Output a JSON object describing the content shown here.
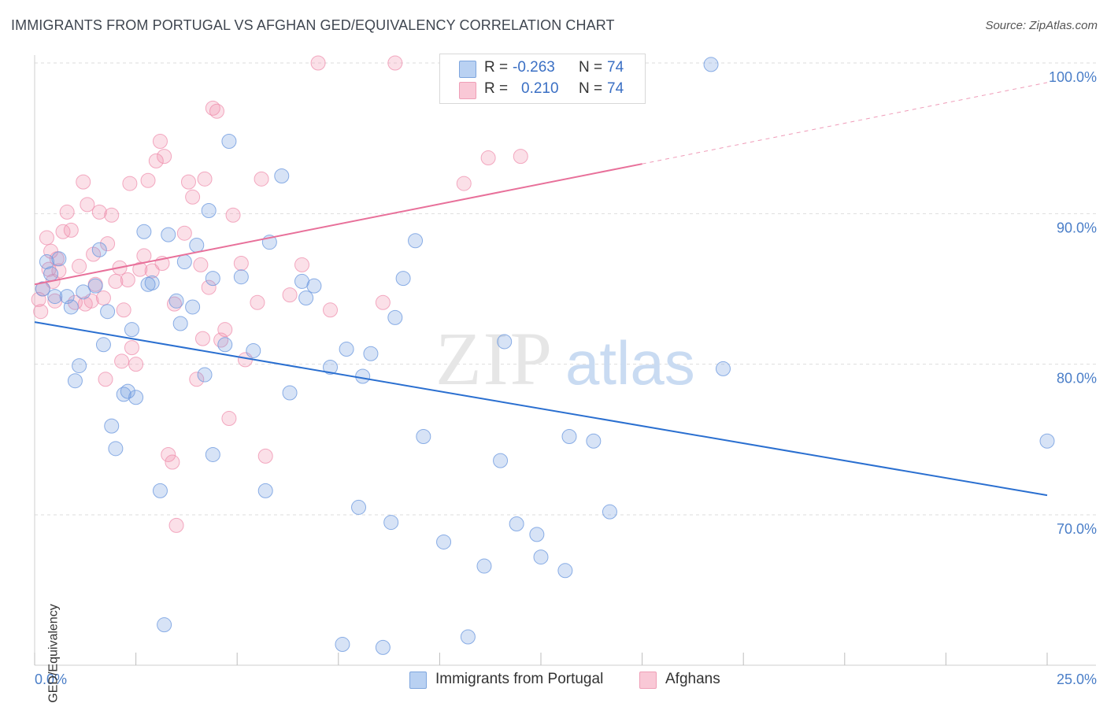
{
  "title": "IMMIGRANTS FROM PORTUGAL VS AFGHAN GED/EQUIVALENCY CORRELATION CHART",
  "source": "Source: ZipAtlas.com",
  "watermark": {
    "zip": "ZIP",
    "atlas": "atlas"
  },
  "legend": {
    "rows": [
      {
        "r_label": "R =",
        "r_value": "-0.263",
        "n_label": "N =",
        "n_value": "74"
      },
      {
        "r_label": "R =",
        "r_value": "0.210",
        "n_label": "N =",
        "n_value": "74"
      }
    ]
  },
  "bottom_legend": {
    "series1": "Immigrants from Portugal",
    "series2": "Afghans"
  },
  "chart_data": {
    "type": "scatter",
    "ylabel": "GED/Equivalency",
    "xlabel": "",
    "x_tick_labels": {
      "min": "0.0%",
      "max": "25.0%"
    },
    "y_tick_labels": [
      "100.0%",
      "90.0%",
      "80.0%",
      "70.0%"
    ],
    "y_ticks": [
      100,
      90,
      80,
      70
    ],
    "xlim": [
      0,
      25
    ],
    "ylim": [
      59.5,
      101.5
    ],
    "grid": true,
    "colors": {
      "blue": "#6f9be0",
      "pink": "#ef8fad",
      "blue_line": "#2a6fd0",
      "pink_line": "#e8709a"
    },
    "series": [
      {
        "name": "Immigrants from Portugal",
        "color": "#6f9be0",
        "trend": {
          "x0": 0,
          "y0": 82.8,
          "x1": 25,
          "y1": 71.3
        },
        "points": [
          [
            0.2,
            85
          ],
          [
            0.3,
            86.8
          ],
          [
            0.4,
            86
          ],
          [
            0.5,
            84.5
          ],
          [
            0.6,
            87
          ],
          [
            0.8,
            84.5
          ],
          [
            0.9,
            83.8
          ],
          [
            1.0,
            78.9
          ],
          [
            1.1,
            79.9
          ],
          [
            1.2,
            84.8
          ],
          [
            1.5,
            85.2
          ],
          [
            1.6,
            87.6
          ],
          [
            1.7,
            81.3
          ],
          [
            1.8,
            83.5
          ],
          [
            1.9,
            75.9
          ],
          [
            2.0,
            74.4
          ],
          [
            2.2,
            78.0
          ],
          [
            2.3,
            78.2
          ],
          [
            2.4,
            82.3
          ],
          [
            2.5,
            77.8
          ],
          [
            2.7,
            88.8
          ],
          [
            2.8,
            85.3
          ],
          [
            2.9,
            85.4
          ],
          [
            3.1,
            71.6
          ],
          [
            3.2,
            62.7
          ],
          [
            3.3,
            88.6
          ],
          [
            3.5,
            84.2
          ],
          [
            3.6,
            82.7
          ],
          [
            3.7,
            86.8
          ],
          [
            3.9,
            83.8
          ],
          [
            4.0,
            87.9
          ],
          [
            4.2,
            79.3
          ],
          [
            4.3,
            90.2
          ],
          [
            4.4,
            85.7
          ],
          [
            4.7,
            81.3
          ],
          [
            4.8,
            94.8
          ],
          [
            5.1,
            85.8
          ],
          [
            5.4,
            80.9
          ],
          [
            5.7,
            71.6
          ],
          [
            5.8,
            88.1
          ],
          [
            6.1,
            92.5
          ],
          [
            6.3,
            78.1
          ],
          [
            6.6,
            85.5
          ],
          [
            6.7,
            84.4
          ],
          [
            6.9,
            85.2
          ],
          [
            7.3,
            79.8
          ],
          [
            7.6,
            61.4
          ],
          [
            7.7,
            81.0
          ],
          [
            8.0,
            70.5
          ],
          [
            8.1,
            79.2
          ],
          [
            8.3,
            80.7
          ],
          [
            8.6,
            61.2
          ],
          [
            8.8,
            69.5
          ],
          [
            8.9,
            83.1
          ],
          [
            9.1,
            85.7
          ],
          [
            9.4,
            88.2
          ],
          [
            9.6,
            75.2
          ],
          [
            10.1,
            68.2
          ],
          [
            10.7,
            61.9
          ],
          [
            11.1,
            66.6
          ],
          [
            11.5,
            73.6
          ],
          [
            11.6,
            81.5
          ],
          [
            11.9,
            69.4
          ],
          [
            12.4,
            68.7
          ],
          [
            12.5,
            67.2
          ],
          [
            13.1,
            66.3
          ],
          [
            13.2,
            75.2
          ],
          [
            13.8,
            74.9
          ],
          [
            13.9,
            99.9
          ],
          [
            14.2,
            70.2
          ],
          [
            16.7,
            99.9
          ],
          [
            17.0,
            79.7
          ],
          [
            25.0,
            74.9
          ],
          [
            4.4,
            74.0
          ]
        ]
      },
      {
        "name": "Afghans",
        "color": "#ef8fad",
        "trend": {
          "x0": 0,
          "y0": 85.3,
          "x1": 15,
          "y1": 93.3,
          "dash_x1": 25,
          "dash_y1": 98.7
        },
        "points": [
          [
            0.1,
            84.3
          ],
          [
            0.15,
            83.5
          ],
          [
            0.2,
            85
          ],
          [
            0.3,
            88.4
          ],
          [
            0.4,
            87.5
          ],
          [
            0.5,
            84.2
          ],
          [
            0.6,
            86.2
          ],
          [
            0.7,
            88.8
          ],
          [
            0.8,
            90.1
          ],
          [
            0.9,
            88.9
          ],
          [
            1.0,
            84.1
          ],
          [
            1.1,
            86.5
          ],
          [
            1.2,
            92.1
          ],
          [
            1.3,
            90.6
          ],
          [
            1.4,
            84.2
          ],
          [
            1.5,
            85.3
          ],
          [
            1.6,
            90.1
          ],
          [
            1.7,
            84.4
          ],
          [
            1.8,
            88.0
          ],
          [
            1.9,
            89.9
          ],
          [
            2.0,
            85.5
          ],
          [
            2.1,
            86.4
          ],
          [
            2.2,
            83.6
          ],
          [
            2.3,
            85.6
          ],
          [
            2.4,
            81.1
          ],
          [
            2.5,
            80.0
          ],
          [
            2.6,
            86.3
          ],
          [
            2.7,
            87.2
          ],
          [
            2.8,
            92.2
          ],
          [
            2.9,
            86.2
          ],
          [
            3.0,
            93.5
          ],
          [
            3.1,
            94.8
          ],
          [
            3.2,
            93.8
          ],
          [
            3.3,
            74.0
          ],
          [
            3.4,
            73.5
          ],
          [
            3.5,
            69.3
          ],
          [
            3.7,
            88.7
          ],
          [
            3.8,
            92.1
          ],
          [
            3.9,
            91.1
          ],
          [
            4.0,
            79.0
          ],
          [
            4.1,
            86.6
          ],
          [
            4.2,
            92.3
          ],
          [
            4.3,
            85.1
          ],
          [
            4.4,
            97.0
          ],
          [
            4.5,
            96.8
          ],
          [
            4.6,
            81.6
          ],
          [
            4.7,
            82.3
          ],
          [
            4.8,
            76.4
          ],
          [
            4.9,
            89.9
          ],
          [
            5.1,
            86.7
          ],
          [
            5.2,
            80.3
          ],
          [
            5.5,
            84.1
          ],
          [
            5.6,
            92.3
          ],
          [
            5.7,
            73.9
          ],
          [
            6.3,
            84.6
          ],
          [
            6.6,
            86.6
          ],
          [
            7.0,
            100
          ],
          [
            7.3,
            83.6
          ],
          [
            8.6,
            84.1
          ],
          [
            8.9,
            100
          ],
          [
            10.6,
            92.0
          ],
          [
            11.2,
            93.7
          ],
          [
            12.0,
            93.8
          ],
          [
            1.25,
            84.0
          ],
          [
            1.45,
            87.3
          ],
          [
            0.35,
            86.3
          ],
          [
            0.45,
            85.5
          ],
          [
            1.75,
            79.0
          ],
          [
            2.15,
            80.2
          ],
          [
            2.35,
            92.0
          ],
          [
            3.15,
            86.7
          ],
          [
            3.45,
            84.0
          ],
          [
            4.15,
            81.7
          ],
          [
            0.55,
            87.0
          ]
        ]
      }
    ]
  }
}
